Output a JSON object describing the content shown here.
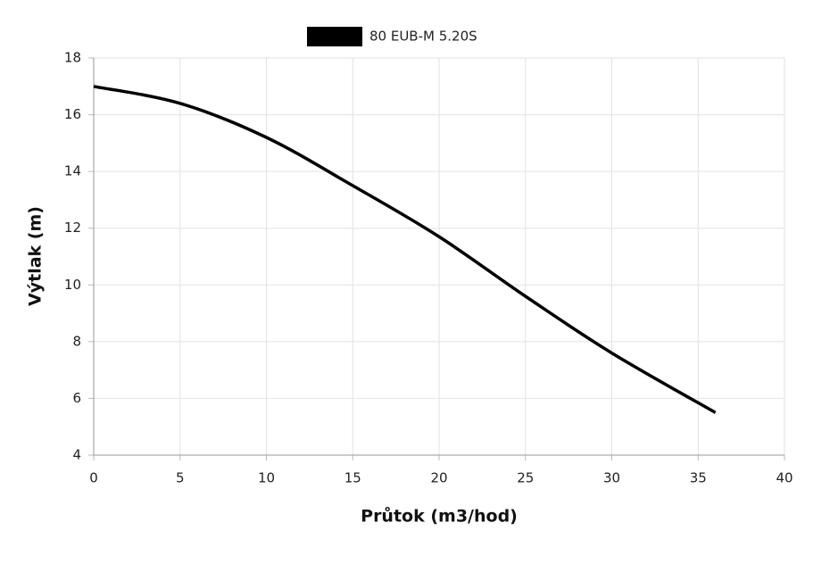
{
  "chart_data": {
    "type": "line",
    "x_label": "Průtok (m3/hod)",
    "y_label": "Výtlak (m)",
    "series": [
      {
        "name": "80 EUB-M 5.20S",
        "color": "#000000",
        "x": [
          0,
          5,
          10,
          15,
          20,
          25,
          30,
          36
        ],
        "values": [
          17,
          16.4,
          15.2,
          13.5,
          11.7,
          9.6,
          7.6,
          5.5
        ]
      }
    ],
    "xlim": [
      0,
      40
    ],
    "xticks": [
      0,
      5,
      10,
      15,
      20,
      25,
      30,
      35,
      40
    ],
    "ylim": [
      4,
      18
    ],
    "yticks": [
      4,
      6,
      8,
      10,
      12,
      14,
      16,
      18
    ],
    "grid": true,
    "legend": "top"
  }
}
